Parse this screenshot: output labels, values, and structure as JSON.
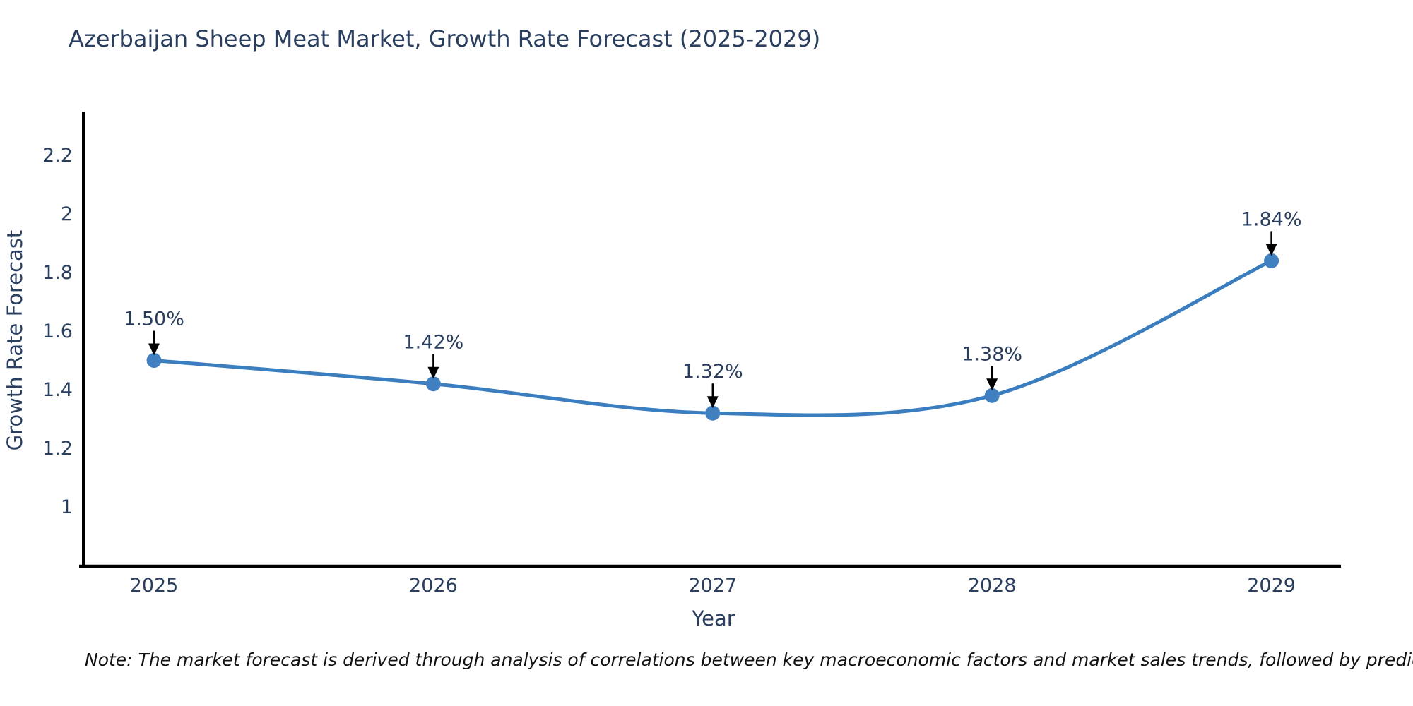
{
  "note": "Note: The market forecast is derived through analysis of correlations between key macroeconomic factors and market sales trends, followed by predictive modeling to project future sales",
  "chart_data": {
    "type": "line",
    "title": "Azerbaijan Sheep Meat Market, Growth Rate Forecast (2025-2029)",
    "x": [
      2025,
      2026,
      2027,
      2028,
      2029
    ],
    "x_ticks": [
      "2025",
      "2026",
      "2027",
      "2028",
      "2029"
    ],
    "values": [
      1.5,
      1.42,
      1.32,
      1.38,
      1.84
    ],
    "point_labels": [
      "1.50%",
      "1.42%",
      "1.32%",
      "1.38%",
      "1.84%"
    ],
    "xlabel": "Year",
    "ylabel": "Growth Rate Forecast",
    "y_ticks": [
      1,
      1.2,
      1.4,
      1.6,
      1.8,
      2,
      2.2
    ],
    "ylim": [
      0.8,
      2.35
    ],
    "grid": false,
    "legend": "none",
    "line_shape": "spline",
    "annotation_style": "label-above-with-down-arrow",
    "colors": {
      "line": "#3a7ebf",
      "marker": "#4080c0",
      "axis": "#000000",
      "text": "#2a3f5f",
      "annotation_arrow": "#000000",
      "note_text": "#111111",
      "background": "#ffffff"
    }
  }
}
